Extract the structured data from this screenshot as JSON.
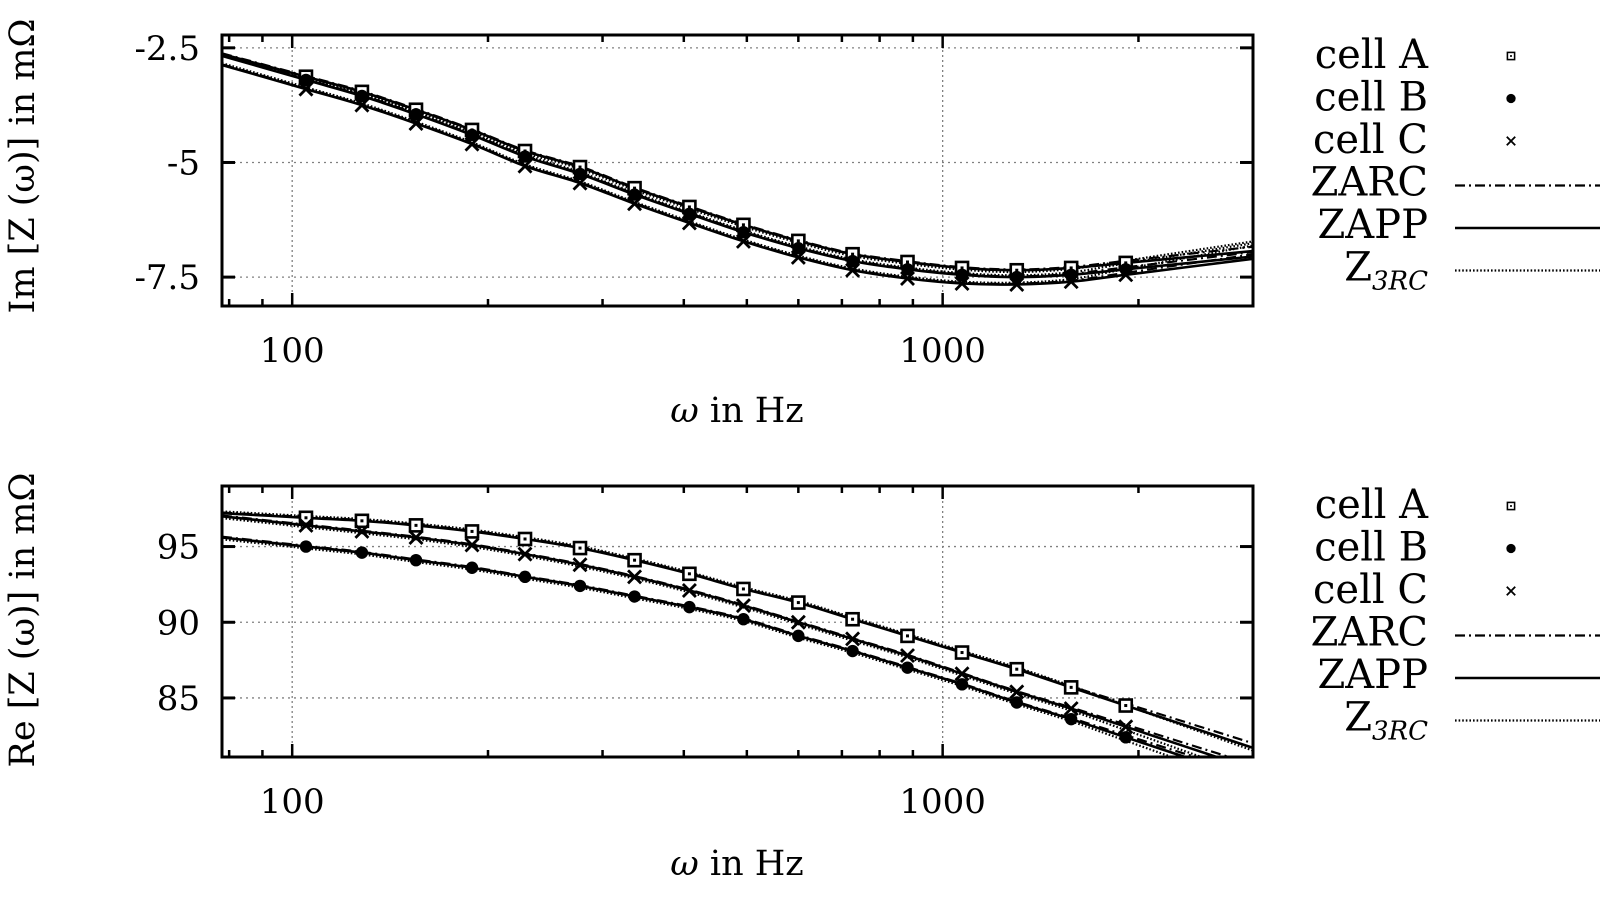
{
  "chart_data": [
    {
      "type": "line",
      "panel": "top",
      "title": "",
      "xlabel": "ω in Hz",
      "ylabel": "Im [Z (ω)] in mΩ",
      "xscale": "log",
      "xlim": [
        78,
        3000
      ],
      "ylim": [
        -8.13,
        -2.22
      ],
      "xticks": [
        {
          "value": 100,
          "label": "100"
        },
        {
          "value": 1000,
          "label": "1000"
        }
      ],
      "yticks": [
        {
          "value": -2.5,
          "label": "-2.5"
        },
        {
          "value": -5,
          "label": "-5"
        },
        {
          "value": -7.5,
          "label": "-7.5"
        }
      ],
      "grid": true,
      "legend_position": "right-outside",
      "x": [
        105,
        128,
        155,
        189,
        228,
        277,
        336,
        408,
        494,
        600,
        727,
        883,
        1071,
        1300,
        1576,
        1912
      ],
      "series": [
        {
          "name": "cell A",
          "marker": "square-dot",
          "values": [
            -3.13,
            -3.46,
            -3.85,
            -4.29,
            -4.75,
            -5.1,
            -5.56,
            -5.97,
            -6.36,
            -6.71,
            -7.0,
            -7.17,
            -7.3,
            -7.35,
            -7.3,
            -7.19
          ]
        },
        {
          "name": "cell B",
          "marker": "filled-circle",
          "values": [
            -3.2,
            -3.55,
            -3.95,
            -4.4,
            -4.87,
            -5.25,
            -5.7,
            -6.12,
            -6.52,
            -6.87,
            -7.15,
            -7.33,
            -7.45,
            -7.5,
            -7.45,
            -7.33
          ]
        },
        {
          "name": "cell C",
          "marker": "cross",
          "values": [
            -3.4,
            -3.75,
            -4.15,
            -4.6,
            -5.08,
            -5.45,
            -5.9,
            -6.32,
            -6.72,
            -7.07,
            -7.35,
            -7.53,
            -7.64,
            -7.66,
            -7.6,
            -7.45
          ]
        }
      ],
      "fits": [
        {
          "name": "ZARC",
          "style": "dashdot"
        },
        {
          "name": "ZAPP",
          "style": "solid"
        },
        {
          "name": "Z_3RC",
          "style": "dotted"
        }
      ]
    },
    {
      "type": "line",
      "panel": "bottom",
      "title": "",
      "xlabel": "ω in Hz",
      "ylabel": "Re [Z (ω)] in mΩ",
      "xscale": "log",
      "xlim": [
        78,
        3000
      ],
      "ylim": [
        81.1,
        99.0
      ],
      "xticks": [
        {
          "value": 100,
          "label": "100"
        },
        {
          "value": 1000,
          "label": "1000"
        }
      ],
      "yticks": [
        {
          "value": 95,
          "label": "95"
        },
        {
          "value": 90,
          "label": "90"
        },
        {
          "value": 85,
          "label": "85"
        }
      ],
      "grid": true,
      "legend_position": "right-outside",
      "x": [
        105,
        128,
        155,
        189,
        228,
        277,
        336,
        408,
        494,
        600,
        727,
        883,
        1071,
        1300,
        1576,
        1912
      ],
      "series": [
        {
          "name": "cell A",
          "marker": "square-dot",
          "values": [
            96.9,
            96.7,
            96.4,
            96.0,
            95.5,
            94.9,
            94.1,
            93.2,
            92.2,
            91.3,
            90.2,
            89.1,
            88.0,
            86.9,
            85.7,
            84.5
          ]
        },
        {
          "name": "cell B",
          "marker": "filled-circle",
          "values": [
            95.0,
            94.6,
            94.1,
            93.6,
            93.0,
            92.4,
            91.7,
            91.0,
            90.2,
            89.1,
            88.1,
            87.0,
            85.9,
            84.7,
            83.6,
            82.4
          ]
        },
        {
          "name": "cell C",
          "marker": "cross",
          "values": [
            96.4,
            96.0,
            95.6,
            95.1,
            94.5,
            93.8,
            93.0,
            92.1,
            91.1,
            90.0,
            88.9,
            87.8,
            86.6,
            85.4,
            84.3,
            83.1
          ]
        }
      ],
      "fits": [
        {
          "name": "ZARC",
          "style": "dashdot"
        },
        {
          "name": "ZAPP",
          "style": "solid"
        },
        {
          "name": "Z_3RC",
          "style": "dotted"
        }
      ]
    }
  ],
  "panels": {
    "top": {
      "ylabel": "Im [Z (ω)] in mΩ",
      "xlabel": "ω in Hz",
      "legend": [
        {
          "label": "cell A",
          "sub": "",
          "key": "square-dot"
        },
        {
          "label": "cell B",
          "sub": "",
          "key": "filled-circle"
        },
        {
          "label": "cell C",
          "sub": "",
          "key": "cross"
        },
        {
          "label": "ZARC",
          "sub": "",
          "key": "dashdot"
        },
        {
          "label": "ZAPP",
          "sub": "",
          "key": "solid"
        },
        {
          "label": "Z",
          "sub": "3RC",
          "key": "dotted"
        }
      ]
    },
    "bottom": {
      "ylabel": "Re [Z (ω)] in mΩ",
      "xlabel": "ω in Hz",
      "legend": [
        {
          "label": "cell A",
          "sub": "",
          "key": "square-dot"
        },
        {
          "label": "cell B",
          "sub": "",
          "key": "filled-circle"
        },
        {
          "label": "cell C",
          "sub": "",
          "key": "cross"
        },
        {
          "label": "ZARC",
          "sub": "",
          "key": "dashdot"
        },
        {
          "label": "ZAPP",
          "sub": "",
          "key": "solid"
        },
        {
          "label": "Z",
          "sub": "3RC",
          "key": "dotted"
        }
      ]
    }
  },
  "colors": {
    "ink": "#000000",
    "grid": "#808080",
    "background": "#ffffff"
  }
}
